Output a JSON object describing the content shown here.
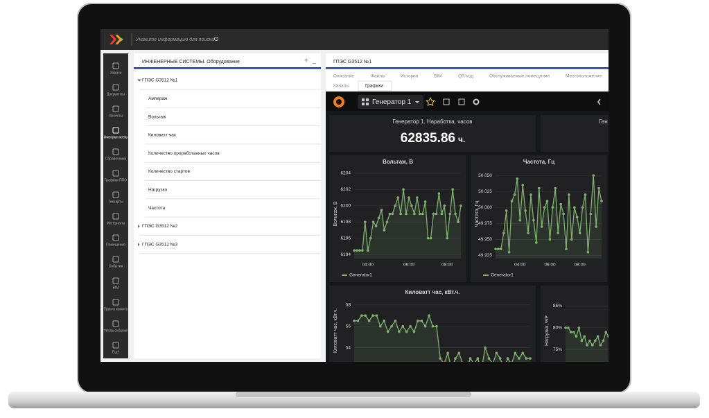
{
  "search_placeholder": "Укажите информацию для поиска",
  "sidebar": [
    "Задачи",
    "Документы",
    "Проекты",
    "Инженерные системы",
    "Справочники",
    "Графики ППО",
    "Техкарты",
    "Материалы",
    "Помещения",
    "События",
    "BIM",
    "Правила маппинга",
    "Фильтры сообщений",
    "Ещё"
  ],
  "sidebar_active": 3,
  "tree": {
    "title": "ИНЖЕНЕРНЫЕ СИСТЕМЫ. Оборудование",
    "items": [
      {
        "label": "ГПЭС G3512 №1",
        "children": [
          "Ампераж",
          "Вольтаж",
          "Киловатт-час",
          "Количество проработанных часов",
          "Количество стартов",
          "Нагрузка",
          "Частота"
        ]
      },
      {
        "label": "ГПЭС G3512 №2"
      },
      {
        "label": "ГПЭС G3512 №3"
      }
    ]
  },
  "details": {
    "title": "ГПЭС G3512 №1",
    "tabs": [
      "Описание",
      "Файлы",
      "История",
      "BIM",
      "QR-код",
      "Обслуживаемые помещения",
      "Местоположение",
      "Каналы",
      "Графики"
    ],
    "active_tab": 8
  },
  "dashboard": {
    "name": "Генератор 1",
    "stat": {
      "title": "Генератор 1. Наработка, часов",
      "value": 62835.86,
      "unit": "ч."
    },
    "stat2_title": "Ген"
  },
  "chart_data": [
    {
      "type": "line",
      "title": "Вольтаж, В",
      "y_label": "Вольтаж, В",
      "categories": [
        null,
        null,
        null,
        null,
        null,
        "04:00",
        null,
        null,
        null,
        null,
        null,
        null,
        null,
        null,
        null,
        null,
        null,
        null,
        null,
        null,
        "06:00",
        null,
        null,
        null,
        null,
        null,
        null,
        null,
        null,
        null,
        null,
        null,
        null,
        null,
        "08:00",
        null,
        null,
        null,
        null,
        null
      ],
      "series": [
        {
          "name": "Generator1",
          "color": "#7eb26d",
          "values": [
            6194.5,
            6194.5,
            6194.5,
            6194.5,
            6198,
            6194.5,
            6196,
            6198,
            6197.5,
            6198.5,
            6199.5,
            6197,
            6198,
            6199,
            6199,
            6200,
            6201,
            6199,
            6202,
            6199,
            6201,
            6200,
            6199,
            6201,
            6199,
            6199,
            6200.5,
            6196,
            6196,
            6199,
            6199,
            6201.5,
            6199,
            6200,
            6196,
            6199,
            6202,
            6199,
            6198,
            6200
          ]
        }
      ],
      "ylim": [
        6193.5,
        6204.5
      ],
      "yticks": [
        6194,
        6196,
        6198,
        6200,
        6202,
        6204
      ],
      "grid": true
    },
    {
      "type": "line",
      "title": "Частота, Гц",
      "y_label": "Частота, Гц",
      "categories": [
        null,
        null,
        null,
        null,
        null,
        null,
        null,
        null,
        null,
        "04:00",
        null,
        null,
        null,
        null,
        null,
        null,
        null,
        null,
        null,
        null,
        "06:00",
        null,
        null,
        null,
        null,
        null,
        null,
        null,
        null,
        null,
        null,
        "08:00",
        null,
        null,
        null,
        null,
        null,
        null,
        null,
        null
      ],
      "series": [
        {
          "name": "Generator1",
          "color": "#7eb26d",
          "values": [
            49.935,
            49.935,
            49.935,
            49.96,
            49.995,
            49.93,
            50.01,
            50.02,
            50.045,
            49.98,
            50.035,
            49.995,
            49.96,
            50.02,
            49.98,
            49.945,
            50.03,
            49.97,
            50.0,
            50.01,
            49.95,
            50.0,
            50.03,
            49.96,
            50.005,
            49.99,
            49.935,
            50.02,
            49.95,
            50.0,
            49.985,
            49.96,
            50.0,
            50.02,
            49.93,
            49.99,
            50.05,
            49.97,
            50.03,
            50.01
          ]
        }
      ],
      "ylim": [
        49.92,
        50.06
      ],
      "yticks": [
        49.925,
        {
          "value": 49.95,
          "label": "49.950"
        },
        49.975,
        {
          "value": 50,
          "label": "50.000"
        },
        50.025,
        {
          "value": 50.05,
          "label": "50.050"
        }
      ],
      "grid": true
    },
    {
      "type": "line",
      "title": "Киловатт час, кВт.ч.",
      "y_label": "Киловатт час, кВт.ч.",
      "series": [
        {
          "color": "#7eb26d",
          "values": [
            56.5,
            56.5,
            57,
            57,
            56.5,
            57,
            57,
            56,
            56.5,
            55.5,
            56,
            56.5,
            55.5,
            56,
            55.5,
            56,
            55.5,
            56.5,
            56.5,
            56,
            57,
            56,
            56,
            53,
            52.5,
            53.5,
            52,
            53,
            53.5,
            52.5,
            52,
            53,
            52.5,
            53,
            52,
            54,
            53,
            52.5,
            53.5,
            53,
            52,
            53,
            52.5,
            53.5,
            53,
            53.5,
            53,
            53
          ]
        }
      ],
      "ylim": [
        51,
        58.5
      ],
      "yticks": [
        52,
        54,
        56,
        58
      ],
      "grid": true
    },
    {
      "type": "line",
      "y_label": "Нагрузка, %P",
      "series": [
        {
          "color": "#7eb26d",
          "values": [
            80,
            80,
            79,
            79,
            78,
            80,
            77,
            78,
            76,
            77,
            76,
            77,
            78,
            76,
            77,
            79,
            78,
            79
          ]
        }
      ],
      "ylim": [
        68,
        86.5
      ],
      "yticks": [
        {
          "value": 70,
          "label": "70%"
        },
        {
          "value": 75,
          "label": "75%"
        },
        {
          "value": 80,
          "label": "80%"
        },
        {
          "value": 85,
          "label": "85%"
        }
      ],
      "grid": true
    }
  ]
}
